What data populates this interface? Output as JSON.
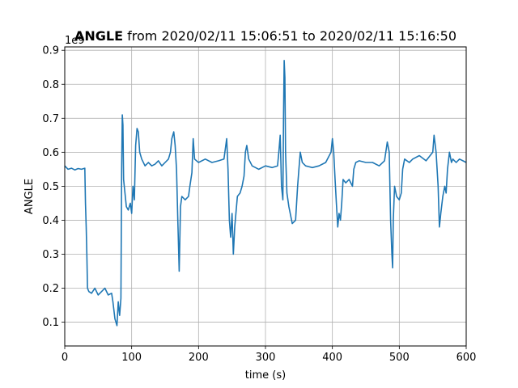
{
  "chart_data": {
    "type": "line",
    "title_bold": "ANGLE",
    "title_rest": " from 2020/02/11 15:06:51 to 2020/02/11 15:16:50",
    "xlabel": "time (s)",
    "ylabel": "ANGLE",
    "y_offset_label": "1e9",
    "xlim": [
      0,
      600
    ],
    "ylim": [
      0.03,
      0.91
    ],
    "x_ticks": [
      0,
      100,
      200,
      300,
      400,
      500,
      600
    ],
    "y_ticks": [
      0.1,
      0.2,
      0.3,
      0.4,
      0.5,
      0.6,
      0.7,
      0.8,
      0.9
    ],
    "grid": true,
    "line_color": "#1f77b4",
    "series": [
      {
        "points": [
          [
            0,
            0.56
          ],
          [
            5,
            0.55
          ],
          [
            10,
            0.553
          ],
          [
            15,
            0.548
          ],
          [
            20,
            0.552
          ],
          [
            25,
            0.55
          ],
          [
            30,
            0.553
          ],
          [
            31,
            0.45
          ],
          [
            32,
            0.38
          ],
          [
            33,
            0.3
          ],
          [
            34,
            0.2
          ],
          [
            36,
            0.19
          ],
          [
            40,
            0.185
          ],
          [
            45,
            0.2
          ],
          [
            50,
            0.18
          ],
          [
            55,
            0.19
          ],
          [
            60,
            0.2
          ],
          [
            65,
            0.18
          ],
          [
            70,
            0.185
          ],
          [
            72,
            0.16
          ],
          [
            75,
            0.11
          ],
          [
            78,
            0.09
          ],
          [
            80,
            0.16
          ],
          [
            82,
            0.12
          ],
          [
            84,
            0.17
          ],
          [
            85,
            0.55
          ],
          [
            86,
            0.71
          ],
          [
            87,
            0.68
          ],
          [
            88,
            0.52
          ],
          [
            90,
            0.48
          ],
          [
            92,
            0.44
          ],
          [
            95,
            0.43
          ],
          [
            98,
            0.45
          ],
          [
            100,
            0.42
          ],
          [
            102,
            0.5
          ],
          [
            104,
            0.46
          ],
          [
            106,
            0.62
          ],
          [
            108,
            0.67
          ],
          [
            110,
            0.66
          ],
          [
            112,
            0.6
          ],
          [
            115,
            0.58
          ],
          [
            120,
            0.56
          ],
          [
            125,
            0.57
          ],
          [
            130,
            0.56
          ],
          [
            135,
            0.565
          ],
          [
            140,
            0.575
          ],
          [
            145,
            0.56
          ],
          [
            150,
            0.57
          ],
          [
            155,
            0.58
          ],
          [
            158,
            0.6
          ],
          [
            160,
            0.64
          ],
          [
            163,
            0.66
          ],
          [
            165,
            0.62
          ],
          [
            167,
            0.55
          ],
          [
            169,
            0.4
          ],
          [
            171,
            0.25
          ],
          [
            173,
            0.44
          ],
          [
            175,
            0.47
          ],
          [
            180,
            0.46
          ],
          [
            185,
            0.47
          ],
          [
            187,
            0.5
          ],
          [
            190,
            0.54
          ],
          [
            192,
            0.64
          ],
          [
            194,
            0.58
          ],
          [
            200,
            0.57
          ],
          [
            210,
            0.58
          ],
          [
            220,
            0.57
          ],
          [
            230,
            0.575
          ],
          [
            238,
            0.58
          ],
          [
            240,
            0.61
          ],
          [
            242,
            0.64
          ],
          [
            244,
            0.55
          ],
          [
            246,
            0.4
          ],
          [
            248,
            0.35
          ],
          [
            250,
            0.42
          ],
          [
            252,
            0.3
          ],
          [
            254,
            0.38
          ],
          [
            258,
            0.47
          ],
          [
            262,
            0.48
          ],
          [
            265,
            0.5
          ],
          [
            268,
            0.53
          ],
          [
            270,
            0.6
          ],
          [
            272,
            0.62
          ],
          [
            275,
            0.58
          ],
          [
            280,
            0.56
          ],
          [
            290,
            0.55
          ],
          [
            300,
            0.56
          ],
          [
            310,
            0.555
          ],
          [
            318,
            0.56
          ],
          [
            320,
            0.6
          ],
          [
            322,
            0.65
          ],
          [
            324,
            0.5
          ],
          [
            326,
            0.46
          ],
          [
            327,
            0.7
          ],
          [
            328,
            0.87
          ],
          [
            329,
            0.82
          ],
          [
            330,
            0.6
          ],
          [
            332,
            0.48
          ],
          [
            335,
            0.44
          ],
          [
            340,
            0.39
          ],
          [
            345,
            0.4
          ],
          [
            348,
            0.5
          ],
          [
            350,
            0.55
          ],
          [
            352,
            0.6
          ],
          [
            355,
            0.57
          ],
          [
            360,
            0.56
          ],
          [
            370,
            0.555
          ],
          [
            380,
            0.56
          ],
          [
            390,
            0.57
          ],
          [
            398,
            0.6
          ],
          [
            400,
            0.64
          ],
          [
            402,
            0.6
          ],
          [
            404,
            0.52
          ],
          [
            406,
            0.45
          ],
          [
            408,
            0.38
          ],
          [
            410,
            0.42
          ],
          [
            412,
            0.4
          ],
          [
            414,
            0.45
          ],
          [
            416,
            0.52
          ],
          [
            420,
            0.51
          ],
          [
            425,
            0.52
          ],
          [
            430,
            0.5
          ],
          [
            432,
            0.55
          ],
          [
            435,
            0.57
          ],
          [
            440,
            0.575
          ],
          [
            450,
            0.57
          ],
          [
            460,
            0.57
          ],
          [
            470,
            0.56
          ],
          [
            478,
            0.575
          ],
          [
            482,
            0.63
          ],
          [
            485,
            0.6
          ],
          [
            487,
            0.4
          ],
          [
            489,
            0.3
          ],
          [
            490,
            0.26
          ],
          [
            491,
            0.4
          ],
          [
            493,
            0.5
          ],
          [
            496,
            0.47
          ],
          [
            500,
            0.46
          ],
          [
            503,
            0.48
          ],
          [
            505,
            0.55
          ],
          [
            508,
            0.58
          ],
          [
            515,
            0.57
          ],
          [
            520,
            0.58
          ],
          [
            530,
            0.59
          ],
          [
            540,
            0.575
          ],
          [
            550,
            0.6
          ],
          [
            552,
            0.65
          ],
          [
            555,
            0.6
          ],
          [
            558,
            0.5
          ],
          [
            560,
            0.38
          ],
          [
            562,
            0.42
          ],
          [
            565,
            0.47
          ],
          [
            568,
            0.5
          ],
          [
            570,
            0.48
          ],
          [
            572,
            0.55
          ],
          [
            575,
            0.6
          ],
          [
            578,
            0.57
          ],
          [
            580,
            0.58
          ],
          [
            585,
            0.57
          ],
          [
            590,
            0.58
          ],
          [
            595,
            0.575
          ],
          [
            600,
            0.57
          ]
        ]
      }
    ]
  }
}
